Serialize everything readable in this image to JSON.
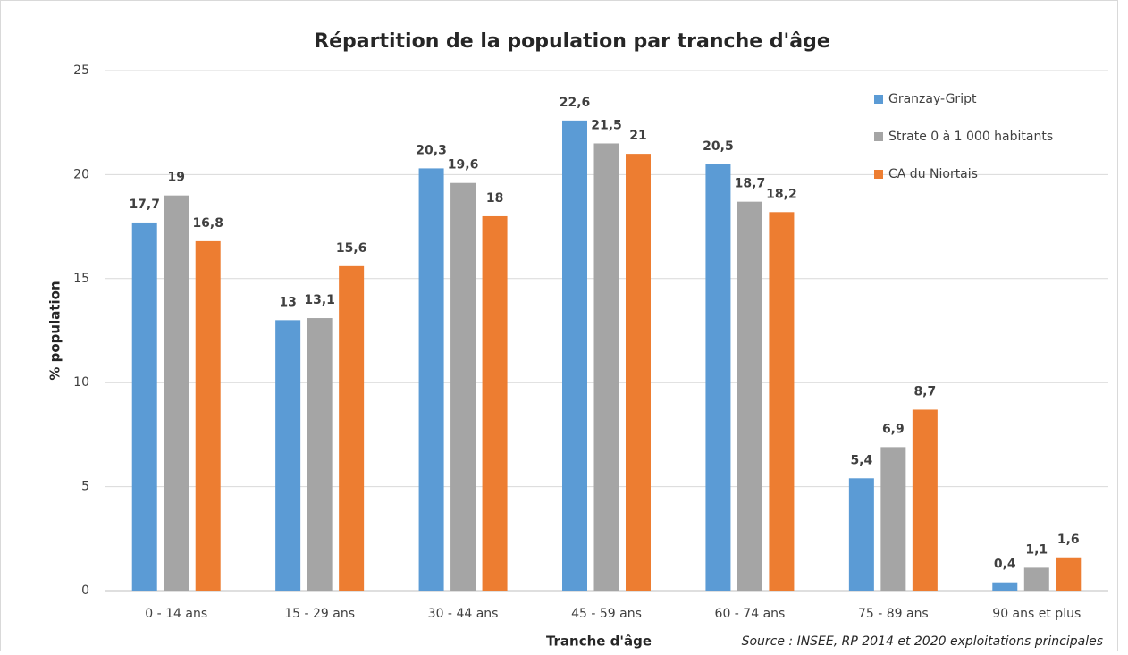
{
  "chart_data": {
    "type": "bar",
    "title": "Répartition de la population par tranche d'âge",
    "x_label": "Tranche d'âge",
    "y_label": "% population",
    "source": "Source : INSEE, RP 2014 et 2020 exploitations principales",
    "categories": [
      "0 - 14 ans",
      "15 - 29 ans",
      "30 - 44 ans",
      "45 - 59 ans",
      "60 - 74 ans",
      "75 - 89 ans",
      "90 ans et plus"
    ],
    "series": [
      {
        "name": "Granzay-Gript",
        "color": "#5b9bd5",
        "values": [
          17.7,
          13,
          20.3,
          22.6,
          20.5,
          5.4,
          0.4
        ],
        "value_labels": [
          "17,7",
          "13",
          "20,3",
          "22,6",
          "20,5",
          "5,4",
          "0,4"
        ]
      },
      {
        "name": "Strate 0 à 1 000 habitants",
        "color": "#a5a5a5",
        "values": [
          19,
          13.1,
          19.6,
          21.5,
          18.7,
          6.9,
          1.1
        ],
        "value_labels": [
          "19",
          "13,1",
          "19,6",
          "21,5",
          "18,7",
          "6,9",
          "1,1"
        ]
      },
      {
        "name": "CA du Niortais",
        "color": "#ed7d31",
        "values": [
          16.8,
          15.6,
          18,
          21,
          18.2,
          8.7,
          1.6
        ],
        "value_labels": [
          "16,8",
          "15,6",
          "18",
          "21",
          "18,2",
          "8,7",
          "1,6"
        ]
      }
    ],
    "ylim": [
      0,
      25
    ],
    "yticks": [
      0,
      5,
      10,
      15,
      20,
      25
    ],
    "grid": true,
    "legend": "top-right"
  }
}
